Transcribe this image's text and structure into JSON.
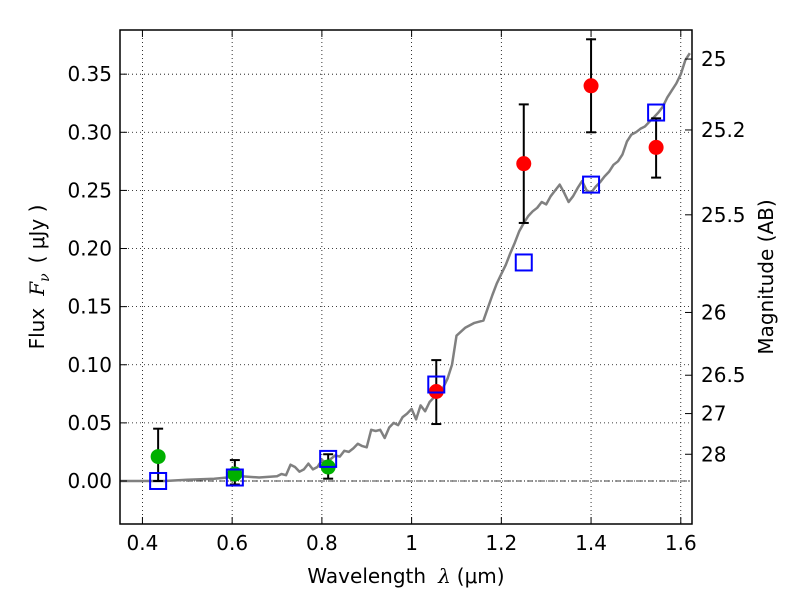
{
  "chart_data": {
    "type": "scatter",
    "title": "",
    "xlabel": "Wavelength",
    "xlabel_math": "λ",
    "xlabel_unit": "(μm)",
    "ylabel": "Flux",
    "ylabel_math": "F",
    "ylabel_math_sub": "ν",
    "ylabel_unit": "( μJy )",
    "y2label": "Magnitude (AB)",
    "xlim": [
      0.35,
      1.625
    ],
    "ylim": [
      -0.037,
      0.388
    ],
    "xticks": [
      0.4,
      0.6,
      0.8,
      1.0,
      1.2,
      1.4,
      1.6
    ],
    "xtick_labels": [
      "0.4",
      "0.6",
      "0.8",
      "1",
      "1.2",
      "1.4",
      "1.6"
    ],
    "yticks": [
      0.0,
      0.05,
      0.1,
      0.15,
      0.2,
      0.25,
      0.3,
      0.35
    ],
    "ytick_labels": [
      "0.00",
      "0.05",
      "0.10",
      "0.15",
      "0.20",
      "0.25",
      "0.30",
      "0.35"
    ],
    "y2ticks": [
      {
        "label": "25",
        "flux": 0.363
      },
      {
        "label": "25.2",
        "flux": 0.302
      },
      {
        "label": "25.5",
        "flux": 0.229
      },
      {
        "label": "26",
        "flux": 0.145
      },
      {
        "label": "26.5",
        "flux": 0.091
      },
      {
        "label": "27",
        "flux": 0.058
      },
      {
        "label": "28",
        "flux": 0.023
      }
    ],
    "grid": true,
    "reference_line_y": 0.0,
    "colors": {
      "model": "#808080",
      "red": "#ff0000",
      "green": "#00b000",
      "box": "#0000ff",
      "errorbar": "#000000",
      "axis": "#000000",
      "grid": "#000000"
    },
    "series": [
      {
        "name": "model spectrum",
        "kind": "line",
        "x": [
          0.35,
          0.45,
          0.5,
          0.56,
          0.59,
          0.62,
          0.66,
          0.7,
          0.71,
          0.72,
          0.73,
          0.74,
          0.75,
          0.76,
          0.77,
          0.78,
          0.79,
          0.8,
          0.81,
          0.82,
          0.83,
          0.84,
          0.85,
          0.86,
          0.87,
          0.88,
          0.89,
          0.9,
          0.91,
          0.92,
          0.93,
          0.94,
          0.95,
          0.96,
          0.97,
          0.98,
          0.99,
          1.0,
          1.01,
          1.02,
          1.03,
          1.04,
          1.05,
          1.06,
          1.07,
          1.08,
          1.09,
          1.1,
          1.12,
          1.14,
          1.16,
          1.18,
          1.19,
          1.2,
          1.21,
          1.22,
          1.23,
          1.24,
          1.25,
          1.26,
          1.27,
          1.28,
          1.29,
          1.3,
          1.31,
          1.32,
          1.33,
          1.34,
          1.35,
          1.36,
          1.37,
          1.38,
          1.39,
          1.4,
          1.41,
          1.42,
          1.43,
          1.44,
          1.45,
          1.46,
          1.47,
          1.48,
          1.49,
          1.5,
          1.51,
          1.52,
          1.53,
          1.54,
          1.55,
          1.56,
          1.57,
          1.58,
          1.59,
          1.6,
          1.61,
          1.62
        ],
        "y": [
          0.0,
          0.0,
          0.001,
          0.002,
          0.003,
          0.004,
          0.003,
          0.004,
          0.006,
          0.005,
          0.014,
          0.012,
          0.008,
          0.01,
          0.015,
          0.01,
          0.012,
          0.018,
          0.016,
          0.019,
          0.022,
          0.021,
          0.026,
          0.025,
          0.028,
          0.032,
          0.03,
          0.029,
          0.044,
          0.043,
          0.044,
          0.037,
          0.046,
          0.05,
          0.048,
          0.055,
          0.058,
          0.062,
          0.053,
          0.065,
          0.06,
          0.068,
          0.072,
          0.078,
          0.08,
          0.088,
          0.1,
          0.125,
          0.132,
          0.136,
          0.138,
          0.16,
          0.17,
          0.178,
          0.186,
          0.196,
          0.205,
          0.215,
          0.222,
          0.228,
          0.232,
          0.235,
          0.24,
          0.238,
          0.245,
          0.25,
          0.255,
          0.248,
          0.24,
          0.245,
          0.252,
          0.258,
          0.25,
          0.248,
          0.253,
          0.257,
          0.262,
          0.266,
          0.272,
          0.275,
          0.281,
          0.292,
          0.298,
          0.3,
          0.303,
          0.305,
          0.309,
          0.313,
          0.317,
          0.322,
          0.33,
          0.336,
          0.342,
          0.35,
          0.362,
          0.368
        ]
      },
      {
        "name": "green photometry",
        "kind": "errorbar",
        "marker": "circle",
        "color": "green",
        "x": [
          0.435,
          0.606,
          0.814
        ],
        "y": [
          0.021,
          0.006,
          0.012
        ],
        "yerr_low": [
          0.021,
          0.009,
          0.01
        ],
        "yerr_high": [
          0.024,
          0.012,
          0.011
        ]
      },
      {
        "name": "red photometry",
        "kind": "errorbar",
        "marker": "circle",
        "color": "red",
        "x": [
          1.055,
          1.25,
          1.4,
          1.545
        ],
        "y": [
          0.077,
          0.273,
          0.34,
          0.287
        ],
        "yerr_low": [
          0.028,
          0.051,
          0.04,
          0.026
        ],
        "yerr_high": [
          0.027,
          0.051,
          0.04,
          0.025
        ]
      },
      {
        "name": "model band fluxes",
        "kind": "scatter",
        "marker": "open-square",
        "color": "box",
        "x": [
          0.435,
          0.606,
          0.814,
          1.055,
          1.25,
          1.4,
          1.545
        ],
        "y": [
          0.0,
          0.003,
          0.019,
          0.083,
          0.188,
          0.255,
          0.317
        ]
      }
    ]
  }
}
